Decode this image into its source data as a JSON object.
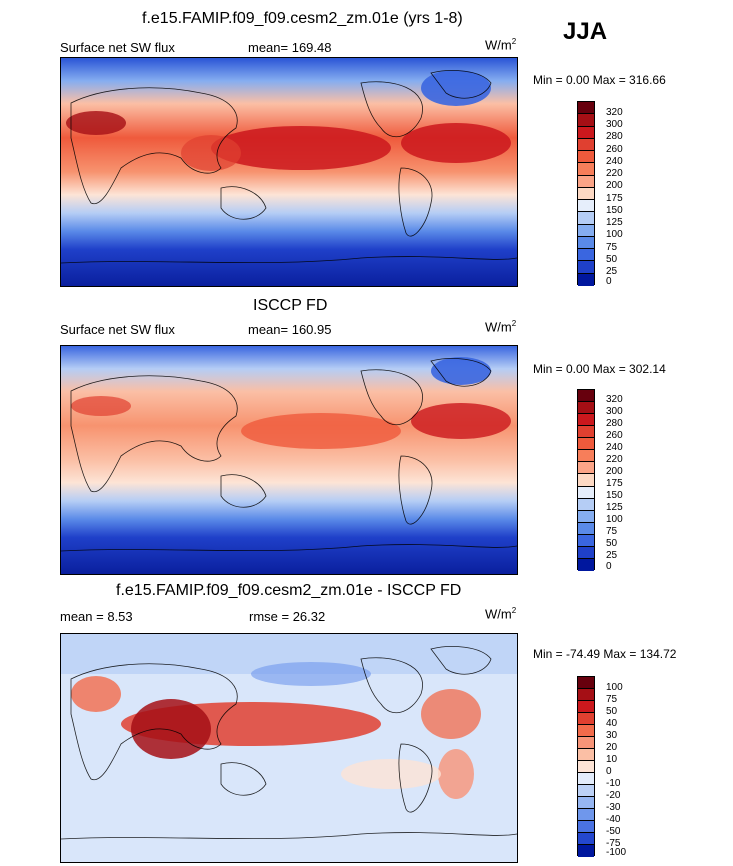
{
  "season": "JJA",
  "units_label": "W/m",
  "units_sup": "2",
  "chart_data": [
    {
      "type": "heatmap",
      "title": "f.e15.FAMIP.f09_f09.cesm2_zm.01e (yrs 1-8)",
      "left_label": "Surface net SW flux",
      "stat_label": "mean= 169.48",
      "minmax": "Min =   0.00 Max = 316.66",
      "mean": 169.48,
      "min": 0.0,
      "max": 316.66,
      "colorbar_levels": [
        "320",
        "300",
        "280",
        "260",
        "240",
        "220",
        "200",
        "175",
        "150",
        "125",
        "100",
        "75",
        "50",
        "25",
        "0"
      ],
      "colorbar_colors": [
        "#67000d",
        "#a50f15",
        "#cb181d",
        "#e04030",
        "#ef5a3c",
        "#f77e5a",
        "#fba487",
        "#fdd9c4",
        "#e6eefb",
        "#b5cdf5",
        "#85adf0",
        "#5a8ae8",
        "#3a66e0",
        "#1f40c9",
        "#00179e"
      ]
    },
    {
      "type": "heatmap",
      "title": "ISCCP FD",
      "left_label": "Surface net SW flux",
      "stat_label": "mean= 160.95",
      "minmax": "Min =   0.00 Max = 302.14",
      "mean": 160.95,
      "min": 0.0,
      "max": 302.14,
      "colorbar_levels": [
        "320",
        "300",
        "280",
        "260",
        "240",
        "220",
        "200",
        "175",
        "150",
        "125",
        "100",
        "75",
        "50",
        "25",
        "0"
      ],
      "colorbar_colors": [
        "#67000d",
        "#a50f15",
        "#cb181d",
        "#e04030",
        "#ef5a3c",
        "#f77e5a",
        "#fba487",
        "#fdd9c4",
        "#e6eefb",
        "#b5cdf5",
        "#85adf0",
        "#5a8ae8",
        "#3a66e0",
        "#1f40c9",
        "#00179e"
      ]
    },
    {
      "type": "heatmap",
      "title": "f.e15.FAMIP.f09_f09.cesm2_zm.01e - ISCCP FD",
      "left_label": "mean =   8.53",
      "stat_label": "rmse =  26.32",
      "minmax": "Min = -74.49 Max = 134.72",
      "mean": 8.53,
      "rmse": 26.32,
      "min": -74.49,
      "max": 134.72,
      "colorbar_levels": [
        "100",
        "75",
        "50",
        "40",
        "30",
        "20",
        "10",
        "0",
        "-10",
        "-20",
        "-30",
        "-40",
        "-50",
        "-75",
        "-100"
      ],
      "colorbar_colors": [
        "#67000d",
        "#a50f15",
        "#cb181d",
        "#e04030",
        "#f26b4b",
        "#f79478",
        "#fbbfa5",
        "#fde4d6",
        "#e3ecfb",
        "#bcd1f6",
        "#96b6f2",
        "#6f97ec",
        "#4a72e3",
        "#2447cf",
        "#00179e"
      ]
    }
  ]
}
